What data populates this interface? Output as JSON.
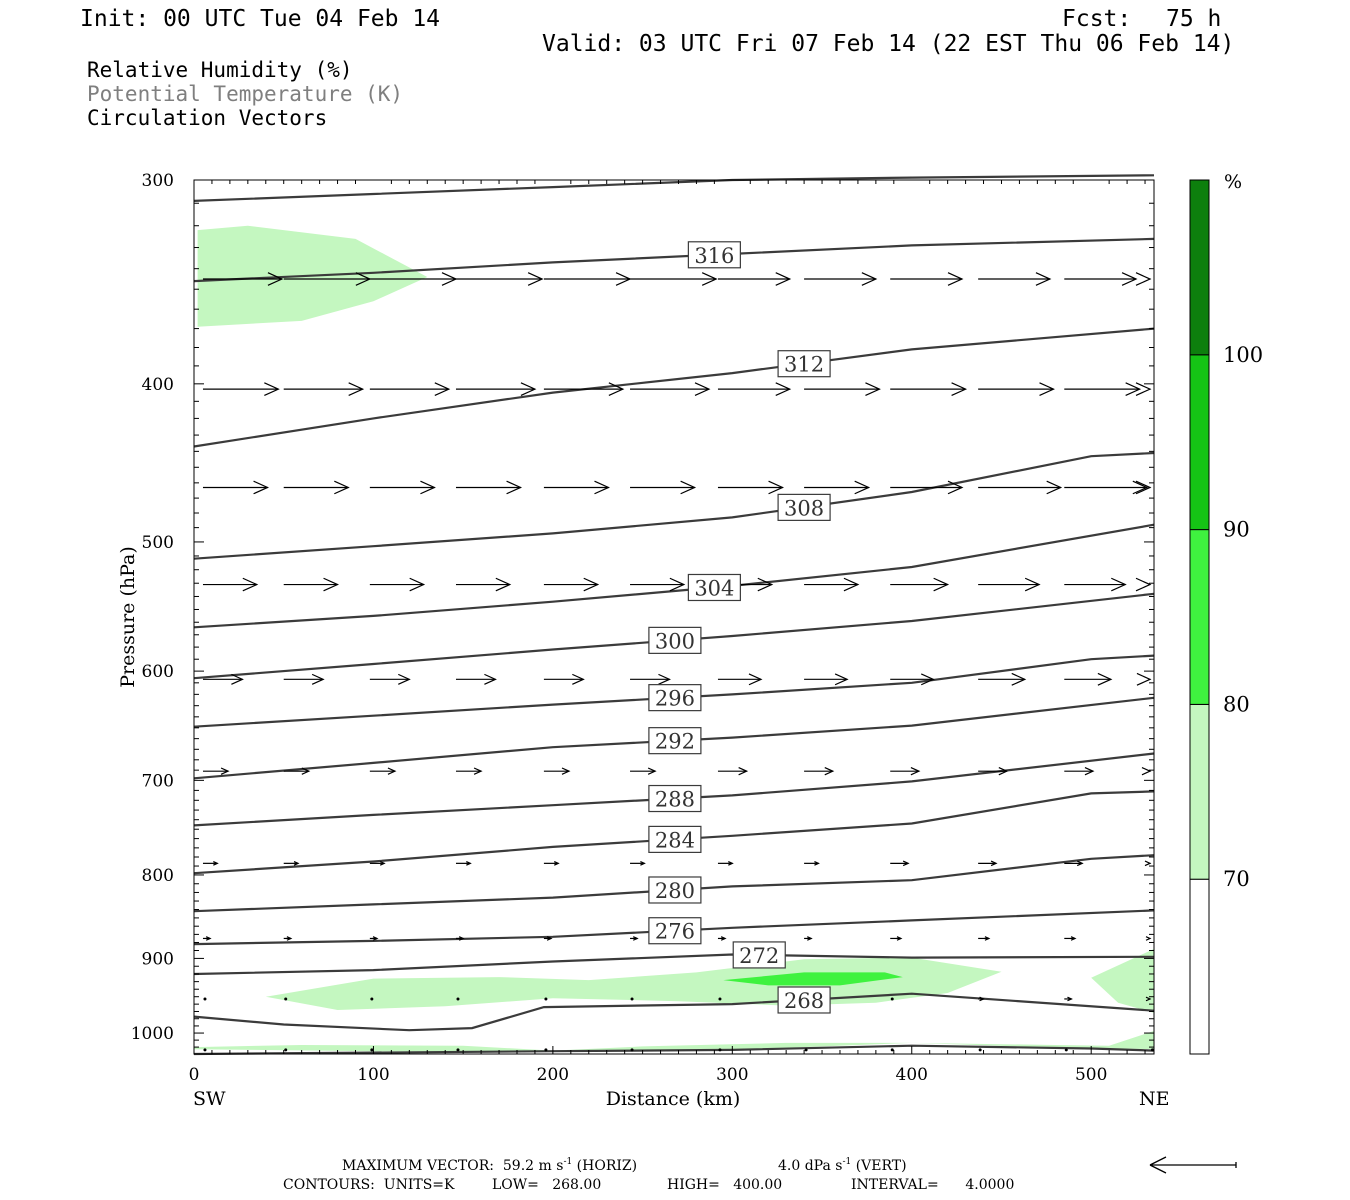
{
  "header": {
    "init": "Init: 00 UTC Tue 04 Feb 14",
    "fcst_label": "Fcst:",
    "fcst_value": "75 h",
    "valid": "Valid: 03 UTC Fri 07 Feb 14 (22 EST Thu 06 Feb 14)"
  },
  "legend": {
    "line1": "Relative Humidity (%)",
    "line2": "Potential Temperature (K)",
    "line3": "Circulation Vectors"
  },
  "colors": {
    "rh70": "#c4f7c0",
    "rh80": "#3ff23f",
    "rh90": "#15c415",
    "rh100": "#0d7f0d",
    "theta": "#3b3b3b",
    "theta_label_border": "#3b3b3b"
  },
  "footer": {
    "max_vector_label": "MAXIMUM VECTOR:",
    "max_vector_horiz_value": "59.2",
    "max_vector_horiz_units": "m s",
    "horiz_tag": "(HORIZ)",
    "max_vector_vert_value": "4.0",
    "max_vector_vert_units": "dPa s",
    "vert_tag": "(VERT)",
    "exponent": "-1",
    "contours_units": "CONTOURS:  UNITS=K",
    "low": "LOW=   268.00",
    "high": "HIGH=   400.00",
    "interval": "INTERVAL=      4.0000"
  },
  "chart_data": {
    "type": "cross-section",
    "xlabel": "Distance (km)",
    "ylabel": "Pressure (hPa)",
    "xlim": [
      0,
      535
    ],
    "ylim": [
      300,
      1030
    ],
    "y_log": true,
    "x_ticks": [
      0,
      100,
      200,
      300,
      400,
      500
    ],
    "x_tick_labels": [
      "0",
      "100",
      "200",
      "300",
      "400",
      "500"
    ],
    "y_ticks": [
      300,
      400,
      500,
      600,
      700,
      800,
      900,
      1000
    ],
    "y_tick_labels": [
      "300",
      "400",
      "500",
      "600",
      "700",
      "800",
      "900",
      "1000"
    ],
    "left_end_label": "SW",
    "right_end_label": "NE",
    "colorbar": {
      "unit": "%",
      "levels": [
        "70",
        "80",
        "90",
        "100"
      ],
      "values": [
        70,
        80,
        90,
        100
      ]
    },
    "theta_contours": [
      {
        "label": "",
        "value": 320,
        "x": [
          0,
          100,
          200,
          300,
          400,
          535
        ],
        "p": [
          309,
          306,
          303,
          300,
          299,
          298
        ]
      },
      {
        "label": "316",
        "value": 316,
        "x": [
          0,
          100,
          200,
          300,
          400,
          535
        ],
        "p": [
          346,
          342,
          337,
          333,
          329,
          326
        ]
      },
      {
        "label": "312",
        "value": 312,
        "x": [
          0,
          100,
          200,
          300,
          400,
          535
        ],
        "p": [
          437,
          420,
          405,
          394,
          381,
          370
        ]
      },
      {
        "label": "308",
        "value": 308,
        "x": [
          0,
          100,
          200,
          300,
          400,
          500,
          535
        ],
        "p": [
          512,
          503,
          494,
          483,
          466,
          443,
          441
        ]
      },
      {
        "label": "304",
        "value": 304,
        "x": [
          0,
          100,
          200,
          300,
          400,
          535
        ],
        "p": [
          564,
          555,
          544,
          532,
          518,
          488
        ]
      },
      {
        "label": "300",
        "value": 300,
        "x": [
          0,
          100,
          200,
          300,
          400,
          535
        ],
        "p": [
          606,
          594,
          582,
          571,
          559,
          538
        ]
      },
      {
        "label": "296",
        "value": 296,
        "x": [
          0,
          100,
          200,
          300,
          400,
          500,
          535
        ],
        "p": [
          649,
          639,
          629,
          620,
          610,
          590,
          587
        ]
      },
      {
        "label": "292",
        "value": 292,
        "x": [
          0,
          100,
          200,
          300,
          400,
          535
        ],
        "p": [
          698,
          683,
          668,
          659,
          648,
          623
        ]
      },
      {
        "label": "288",
        "value": 288,
        "x": [
          0,
          100,
          200,
          300,
          400,
          535
        ],
        "p": [
          746,
          735,
          725,
          715,
          701,
          674
        ]
      },
      {
        "label": "284",
        "value": 284,
        "x": [
          0,
          100,
          200,
          300,
          400,
          500,
          535
        ],
        "p": [
          798,
          785,
          769,
          757,
          744,
          713,
          711
        ]
      },
      {
        "label": "280",
        "value": 280,
        "x": [
          0,
          100,
          200,
          300,
          400,
          500,
          535
        ],
        "p": [
          842,
          834,
          826,
          813,
          806,
          782,
          778
        ]
      },
      {
        "label": "276",
        "value": 276,
        "x": [
          0,
          100,
          200,
          300,
          400,
          535
        ],
        "p": [
          882,
          878,
          873,
          862,
          853,
          841
        ]
      },
      {
        "label": "272",
        "value": 272,
        "x": [
          0,
          100,
          200,
          300,
          400,
          535
        ],
        "p": [
          920,
          915,
          904,
          895,
          899,
          898
        ]
      },
      {
        "label": "268",
        "value": 268,
        "x": [
          0,
          50,
          120,
          155,
          195,
          300,
          400,
          535
        ],
        "p": [
          977,
          988,
          996,
          993,
          964,
          960,
          946,
          969
        ]
      },
      {
        "label": "",
        "value": 264,
        "x": [
          0,
          100,
          200,
          300,
          400,
          500,
          535
        ],
        "p": [
          1030,
          1028,
          1026,
          1024,
          1018,
          1022,
          1025
        ]
      }
    ],
    "rh_regions": [
      {
        "level": 70,
        "x": [
          2,
          30,
          90,
          130,
          100,
          60,
          2
        ],
        "p": [
          322,
          320,
          326,
          344,
          356,
          366,
          369
        ]
      },
      {
        "level": 70,
        "x": [
          40,
          100,
          170,
          220,
          280,
          340,
          400,
          450,
          420,
          380,
          330,
          270,
          200,
          140,
          80,
          40
        ],
        "p": [
          950,
          926,
          924,
          928,
          918,
          901,
          899,
          917,
          945,
          958,
          962,
          956,
          952,
          963,
          968,
          950
        ]
      },
      {
        "level": 80,
        "x": [
          295,
          340,
          385,
          395,
          360,
          320,
          295
        ],
        "p": [
          928,
          918,
          918,
          924,
          935,
          935,
          928
        ]
      },
      {
        "level": 70,
        "x": [
          500,
          535,
          535,
          515,
          500
        ],
        "p": [
          925,
          888,
          972,
          958,
          925
        ]
      },
      {
        "level": 70,
        "x": [
          0,
          60,
          150,
          200,
          250,
          330,
          400,
          480,
          510,
          535,
          535,
          460,
          400,
          300,
          200,
          100,
          0
        ],
        "p": [
          1020,
          1017,
          1018,
          1025,
          1019,
          1014,
          1014,
          1017,
          1018,
          997,
          1023,
          1019,
          1014,
          1024,
          1026,
          1026,
          1023
        ]
      }
    ],
    "vector_rows": [
      {
        "p": 345,
        "vectors": [
          [
            5,
            44
          ],
          [
            50,
            48
          ],
          [
            98,
            48
          ],
          [
            146,
            48
          ],
          [
            195,
            48
          ],
          [
            243,
            48
          ],
          [
            292,
            40
          ],
          [
            340,
            40
          ],
          [
            388,
            40
          ],
          [
            437,
            40
          ],
          [
            485,
            40
          ],
          [
            533,
            40
          ]
        ]
      },
      {
        "p": 403,
        "vectors": [
          [
            5,
            42
          ],
          [
            50,
            44
          ],
          [
            98,
            44
          ],
          [
            146,
            44
          ],
          [
            195,
            44
          ],
          [
            243,
            44
          ],
          [
            292,
            40
          ],
          [
            340,
            42
          ],
          [
            388,
            42
          ],
          [
            437,
            42
          ],
          [
            485,
            42
          ],
          [
            533,
            42
          ]
        ]
      },
      {
        "p": 463,
        "vectors": [
          [
            5,
            36
          ],
          [
            50,
            36
          ],
          [
            98,
            36
          ],
          [
            146,
            36
          ],
          [
            195,
            36
          ],
          [
            243,
            36
          ],
          [
            292,
            36
          ],
          [
            340,
            36
          ],
          [
            388,
            40
          ],
          [
            437,
            46
          ],
          [
            485,
            46
          ],
          [
            533,
            42
          ]
        ]
      },
      {
        "p": 531,
        "vectors": [
          [
            5,
            30
          ],
          [
            50,
            30
          ],
          [
            98,
            30
          ],
          [
            146,
            30
          ],
          [
            195,
            30
          ],
          [
            243,
            30
          ],
          [
            292,
            30
          ],
          [
            340,
            30
          ],
          [
            388,
            32
          ],
          [
            437,
            34
          ],
          [
            485,
            34
          ],
          [
            533,
            32
          ]
        ]
      },
      {
        "p": 607,
        "vectors": [
          [
            5,
            22
          ],
          [
            50,
            22
          ],
          [
            98,
            22
          ],
          [
            146,
            22
          ],
          [
            195,
            22
          ],
          [
            243,
            22
          ],
          [
            292,
            24
          ],
          [
            340,
            24
          ],
          [
            388,
            24
          ],
          [
            437,
            26
          ],
          [
            485,
            26
          ],
          [
            533,
            26
          ]
        ]
      },
      {
        "p": 691,
        "vectors": [
          [
            5,
            14
          ],
          [
            50,
            14
          ],
          [
            98,
            14
          ],
          [
            146,
            14
          ],
          [
            195,
            14
          ],
          [
            243,
            14
          ],
          [
            292,
            16
          ],
          [
            340,
            16
          ],
          [
            388,
            16
          ],
          [
            437,
            16
          ],
          [
            485,
            16
          ],
          [
            533,
            16
          ]
        ]
      },
      {
        "p": 787,
        "vectors": [
          [
            5,
            8
          ],
          [
            50,
            8
          ],
          [
            98,
            8
          ],
          [
            146,
            8
          ],
          [
            195,
            8
          ],
          [
            243,
            8
          ],
          [
            292,
            8
          ],
          [
            340,
            8
          ],
          [
            388,
            10
          ],
          [
            437,
            10
          ],
          [
            485,
            10
          ],
          [
            533,
            10
          ]
        ]
      },
      {
        "p": 875,
        "vectors": [
          [
            5,
            4
          ],
          [
            50,
            4
          ],
          [
            98,
            4
          ],
          [
            146,
            4
          ],
          [
            195,
            4
          ],
          [
            243,
            4
          ],
          [
            292,
            4
          ],
          [
            340,
            4
          ],
          [
            388,
            6
          ],
          [
            437,
            6
          ],
          [
            485,
            6
          ],
          [
            533,
            6
          ]
        ]
      },
      {
        "p": 953,
        "vectors": [
          [
            5,
            1
          ],
          [
            50,
            1
          ],
          [
            98,
            1
          ],
          [
            146,
            1
          ],
          [
            195,
            1
          ],
          [
            243,
            1
          ],
          [
            292,
            1
          ],
          [
            340,
            1
          ],
          [
            388,
            2
          ],
          [
            437,
            3
          ],
          [
            485,
            4
          ],
          [
            533,
            4
          ]
        ]
      },
      {
        "p": 1024,
        "vectors": [
          [
            5,
            1
          ],
          [
            50,
            1
          ],
          [
            98,
            1
          ],
          [
            146,
            1
          ],
          [
            195,
            1
          ],
          [
            243,
            1
          ],
          [
            292,
            1
          ],
          [
            340,
            1
          ],
          [
            388,
            1
          ],
          [
            437,
            1
          ],
          [
            485,
            1
          ],
          [
            533,
            1
          ]
        ]
      }
    ]
  }
}
